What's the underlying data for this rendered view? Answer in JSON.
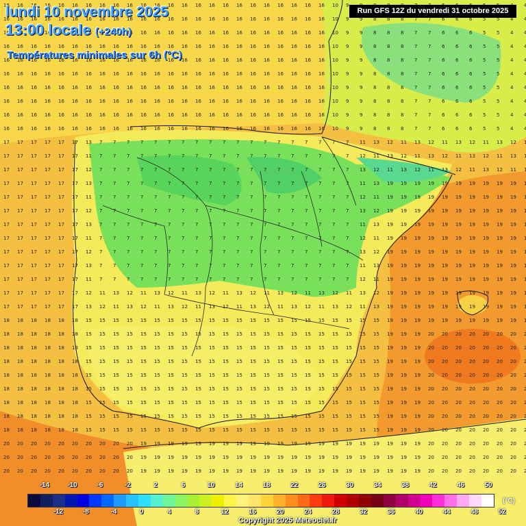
{
  "header": {
    "date": "lundi 10 novembre 2025",
    "time": "13:00 locale",
    "lead": "(+240h)",
    "subtitle": "Températures minimales sur 6h (°C)",
    "run": "Run GFS 12Z du vendredi 31 octobre 2025"
  },
  "legend": {
    "unit": "(°C)",
    "top_labels": [
      "-14",
      "-10",
      "-6",
      "-2",
      "2",
      "6",
      "10",
      "14",
      "18",
      "22",
      "26",
      "30",
      "34",
      "38",
      "42",
      "46",
      "50"
    ],
    "bottom_labels": [
      "-12",
      "-8",
      "-4",
      "0",
      "4",
      "8",
      "12",
      "16",
      "20",
      "24",
      "28",
      "32",
      "36",
      "40",
      "44",
      "48",
      "52"
    ],
    "colors": [
      "#0a0a3c",
      "#10205e",
      "#1a2f8a",
      "#0018b0",
      "#0000e0",
      "#0038ff",
      "#0068ff",
      "#1e9bff",
      "#27c2ff",
      "#2ee0ff",
      "#55f0d0",
      "#6ef59a",
      "#8af560",
      "#a8f032",
      "#ccf020",
      "#eef000",
      "#fff34a",
      "#fff17a",
      "#ffe66b",
      "#ffd33a",
      "#ffb22a",
      "#ff8e1c",
      "#ff6a14",
      "#ff3c0e",
      "#f01a0a",
      "#d00000",
      "#b00000",
      "#900000",
      "#780014",
      "#900040",
      "#b0006a",
      "#d00090",
      "#ee00b8",
      "#ff30d8",
      "#ff70ea",
      "#ffa8f4",
      "#ffd8fb",
      "#ffffff"
    ]
  },
  "copyright": "Copyright 2025 Meteociel.fr",
  "zones": [
    {
      "name": "warm-south-east-sea",
      "color": "#f28a2a"
    },
    {
      "name": "interior-cold",
      "color": "#6fe05a"
    },
    {
      "name": "north-east-sea",
      "color": "#5ad890"
    }
  ]
}
